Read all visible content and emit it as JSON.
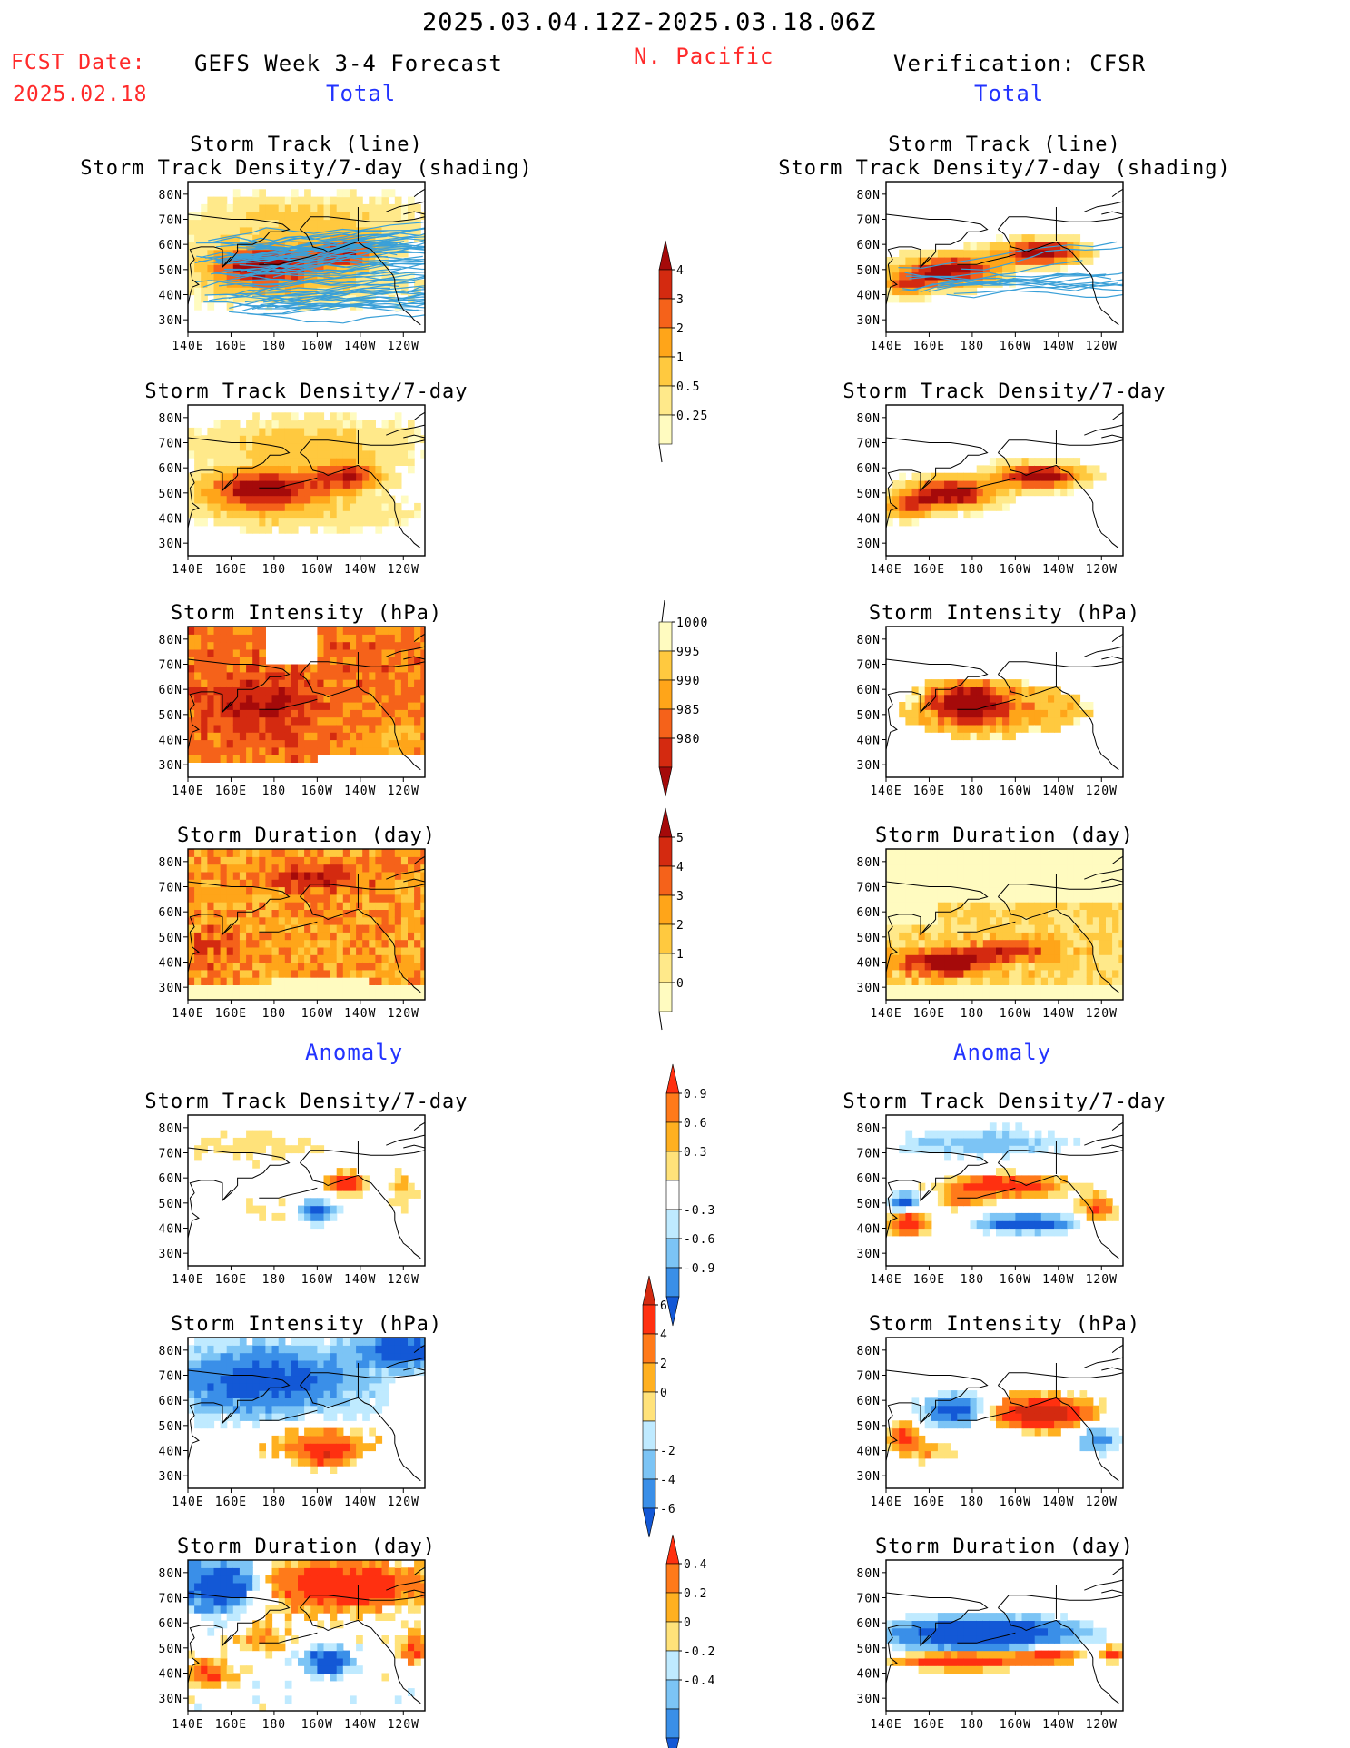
{
  "header": {
    "period": "2025.03.04.12Z-2025.03.18.06Z",
    "fcst_label": "FCST Date:",
    "fcst_date": "2025.02.18",
    "forecast_title": "GEFS Week 3-4 Forecast",
    "region": "N. Pacific",
    "verification_title": "Verification: CFSR",
    "total_left": "Total",
    "total_right": "Total",
    "anomaly_left": "Anomaly",
    "anomaly_right": "Anomaly"
  },
  "panel_titles": {
    "track_line": "Storm Track (line)",
    "track_shading": "Storm Track Density/7-day (shading)",
    "density": "Storm Track Density/7-day",
    "intensity": "Storm Intensity (hPa)",
    "duration": "Storm Duration (day)"
  },
  "axes": {
    "lon_ticks": [
      "140E",
      "160E",
      "180",
      "160W",
      "140W",
      "120W"
    ],
    "lat_ticks": [
      "80N",
      "70N",
      "60N",
      "50N",
      "40N",
      "30N"
    ]
  },
  "colorbars": [
    {
      "id": "density_total",
      "labels": [
        "4",
        "3",
        "2",
        "1",
        "0.5",
        "0.25"
      ],
      "colors": [
        "#a50a0a",
        "#d42a10",
        "#f5621a",
        "#ffa519",
        "#ffc93f",
        "#ffe98a",
        "#fffbc0"
      ]
    },
    {
      "id": "intensity_total",
      "labels": [
        "1000",
        "995",
        "990",
        "985",
        "980"
      ],
      "colors": [
        "#fffbc0",
        "#ffc93f",
        "#ffa519",
        "#f5621a",
        "#d42a10",
        "#a50a0a"
      ]
    },
    {
      "id": "duration_total",
      "labels": [
        "5",
        "4",
        "3",
        "2",
        "1",
        "0"
      ],
      "colors": [
        "#a50a0a",
        "#d42a10",
        "#f5621a",
        "#ffa519",
        "#ffc93f",
        "#ffe98a",
        "#fffbc0"
      ]
    },
    {
      "id": "density_anom",
      "labels": [
        "0.9",
        "0.6",
        "0.3",
        "-0.3",
        "-0.6",
        "-0.9"
      ],
      "colors": [
        "#ff3010",
        "#ff7a1a",
        "#ffb020",
        "#ffe27a",
        "#ffffff",
        "#bfeaff",
        "#7cc4f5",
        "#3a8fe8",
        "#1358d6"
      ]
    },
    {
      "id": "intensity_anom",
      "labels": [
        "6",
        "4",
        "2",
        "0",
        "-2",
        "-4",
        "-6"
      ],
      "colors": [
        "#d42a10",
        "#ff3010",
        "#ff7a1a",
        "#ffb020",
        "#ffe27a",
        "#bfeaff",
        "#7cc4f5",
        "#3a8fe8",
        "#1358d6"
      ]
    },
    {
      "id": "duration_anom",
      "labels": [
        "0.4",
        "0.2",
        "0",
        "-0.2",
        "-0.4"
      ],
      "colors": [
        "#ff3010",
        "#ff7a1a",
        "#ffb020",
        "#ffe27a",
        "#bfeaff",
        "#7cc4f5",
        "#3a8fe8",
        "#1358d6"
      ]
    }
  ],
  "chart_data": {
    "type": "heatmap",
    "domain": {
      "lon_range": [
        "140E",
        "110W"
      ],
      "lat_range": [
        "25N",
        "85N"
      ]
    },
    "columns": [
      "GEFS Week 3-4 Forecast",
      "Verification: CFSR"
    ],
    "panels": [
      {
        "column": "GEFS Week 3-4 Forecast",
        "group": "Total",
        "title": "Storm Track (line) / Storm Track Density/7-day (shading)",
        "field": "track_line",
        "palette": "density_total",
        "features": [
          {
            "lon": "170E",
            "lat": "52N",
            "value": "3",
            "spread": "wide"
          },
          {
            "lon": "150W",
            "lat": "57N",
            "value": "2"
          }
        ]
      },
      {
        "column": "Verification: CFSR",
        "group": "Total",
        "title": "Storm Track (line) / Storm Track Density/7-day (shading)",
        "field": "track_line",
        "palette": "density_total",
        "features": [
          {
            "lon": "165E",
            "lat": "50N",
            "value": "4"
          },
          {
            "lon": "145W",
            "lat": "57N",
            "value": "4"
          }
        ]
      },
      {
        "column": "GEFS Week 3-4 Forecast",
        "group": "Total",
        "title": "Storm Track Density/7-day",
        "field": "density",
        "palette": "density_total",
        "features": [
          {
            "lon": "170E",
            "lat": "52N",
            "value": "3"
          },
          {
            "lon": "145W",
            "lat": "57N",
            "value": "3"
          }
        ]
      },
      {
        "column": "Verification: CFSR",
        "group": "Total",
        "title": "Storm Track Density/7-day",
        "field": "density",
        "palette": "density_total",
        "features": [
          {
            "lon": "165E",
            "lat": "50N",
            "value": "4"
          },
          {
            "lon": "145W",
            "lat": "57N",
            "value": "4"
          }
        ]
      },
      {
        "column": "GEFS Week 3-4 Forecast",
        "group": "Total",
        "title": "Storm Intensity (hPa)",
        "field": "intensity",
        "palette": "intensity_total",
        "features": [
          {
            "lon": "170E",
            "lat": "55N",
            "value": "985"
          },
          {
            "lon": "160W",
            "lat": "50N",
            "value": "990"
          }
        ]
      },
      {
        "column": "Verification: CFSR",
        "group": "Total",
        "title": "Storm Intensity (hPa)",
        "field": "intensity",
        "palette": "intensity_total",
        "features": [
          {
            "lon": "175E",
            "lat": "55N",
            "value": "980"
          },
          {
            "lon": "150W",
            "lat": "52N",
            "value": "990"
          }
        ]
      },
      {
        "column": "GEFS Week 3-4 Forecast",
        "group": "Total",
        "title": "Storm Duration (day)",
        "field": "duration",
        "palette": "duration_total",
        "features": [
          {
            "lon": "165W",
            "lat": "72N",
            "value": "4"
          },
          {
            "lon": "170E",
            "lat": "50N",
            "value": "3"
          }
        ]
      },
      {
        "column": "Verification: CFSR",
        "group": "Total",
        "title": "Storm Duration (day)",
        "field": "duration",
        "palette": "duration_total",
        "features": [
          {
            "lon": "170E",
            "lat": "40N",
            "value": "5"
          },
          {
            "lon": "150W",
            "lat": "55N",
            "value": "2"
          }
        ]
      },
      {
        "column": "GEFS Week 3-4 Forecast",
        "group": "Anomaly",
        "title": "Storm Track Density/7-day",
        "field": "density_anom",
        "palette": "density_anom",
        "features": [
          {
            "lon": "145W",
            "lat": "58N",
            "value": "0.9"
          },
          {
            "lon": "155W",
            "lat": "47N",
            "value": "-0.6"
          }
        ]
      },
      {
        "column": "Verification: CFSR",
        "group": "Anomaly",
        "title": "Storm Track Density/7-day",
        "field": "density_anom",
        "palette": "density_anom",
        "features": [
          {
            "lon": "160W",
            "lat": "57N",
            "value": "0.9"
          },
          {
            "lon": "160W",
            "lat": "42N",
            "value": "-0.9"
          }
        ]
      },
      {
        "column": "GEFS Week 3-4 Forecast",
        "group": "Anomaly",
        "title": "Storm Intensity (hPa)",
        "field": "intensity_anom",
        "palette": "intensity_anom",
        "features": [
          {
            "lon": "170E",
            "lat": "65N",
            "value": "-4"
          },
          {
            "lon": "165W",
            "lat": "42N",
            "value": "2"
          }
        ]
      },
      {
        "column": "Verification: CFSR",
        "group": "Anomaly",
        "title": "Storm Intensity (hPa)",
        "field": "intensity_anom",
        "palette": "intensity_anom",
        "features": [
          {
            "lon": "150W",
            "lat": "55N",
            "value": "6"
          },
          {
            "lon": "170E",
            "lat": "57N",
            "value": "-4"
          }
        ]
      },
      {
        "column": "GEFS Week 3-4 Forecast",
        "group": "Anomaly",
        "title": "Storm Duration (day)",
        "field": "duration_anom",
        "palette": "duration_anom",
        "features": [
          {
            "lon": "160W",
            "lat": "72N",
            "value": "0.4"
          },
          {
            "lon": "160E",
            "lat": "75N",
            "value": "-0.4"
          }
        ]
      },
      {
        "column": "Verification: CFSR",
        "group": "Anomaly",
        "title": "Storm Duration (day)",
        "field": "duration_anom",
        "palette": "duration_anom",
        "features": [
          {
            "lon": "170W",
            "lat": "58N",
            "value": "-0.4"
          },
          {
            "lon": "175E",
            "lat": "42N",
            "value": "0.4"
          }
        ]
      }
    ]
  }
}
